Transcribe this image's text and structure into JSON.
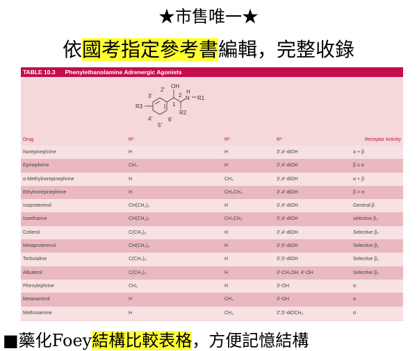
{
  "heading": {
    "line1": "★市售唯一★",
    "line2_pre": "依",
    "line2_hl": "國考指定參考書",
    "line2_post": "編輯，完整收錄"
  },
  "footer": {
    "pre": "■藥化Foey",
    "hl": "結構比較表格",
    "post": "，方便記憶結構"
  },
  "table": {
    "label": "TABLE 10.3",
    "title": "Phenylethanolamine Adrenergic Agonists",
    "structure_labels": {
      "oh": "OH",
      "h": "H",
      "n": "N",
      "r1": "R1",
      "r2": "R2",
      "r3": "R3",
      "p1": "1",
      "p2": "2",
      "p2p": "2'",
      "p3p": "3'",
      "p4p": "4'",
      "p5p": "5'",
      "p6p": "6'"
    },
    "columns": [
      "Drug",
      "R¹",
      "R²",
      "R³",
      "Receptor Activity"
    ],
    "rows": [
      [
        "Norepinephrine",
        "H",
        "H",
        "3',4'-diOH",
        "α + β"
      ],
      [
        "Epinephrine",
        "CH₃",
        "H",
        "3',4'-diOH",
        "β ≥ α"
      ],
      [
        "α-Methylnorepinephrine",
        "H",
        "CH₃",
        "3',4'-diOH",
        "α + β"
      ],
      [
        "Ethylnorepinephrine",
        "H",
        "CH₂CH₃",
        "3',4'-diOH",
        "β > α"
      ],
      [
        "Isoproterenol",
        "CH(CH₃)₂",
        "H",
        "3',4'-diOH",
        "General β"
      ],
      [
        "Isoetharine",
        "CH(CH₃)₂",
        "CH₂CH₃",
        "3',4'-diOH",
        "selective β₂"
      ],
      [
        "Colterol",
        "C(CH₃)₃",
        "H",
        "3',4'-diOH",
        "Selective β₂"
      ],
      [
        "Metaproterenol",
        "CH(CH₃)₂",
        "H",
        "3',5'-diOH",
        "Selective β₂"
      ],
      [
        "Terbutaline",
        "C(CH₃)₃",
        "H",
        "3',5'-diOH",
        "Selective β₂"
      ],
      [
        "Albuterol",
        "C(CH₃)₃",
        "H",
        "3'-CH₂OH, 4'-OH",
        "Selective β₂"
      ],
      [
        "Phenylephrine",
        "CH₃",
        "H",
        "3'-OH",
        "α"
      ],
      [
        "Metaraminol",
        "H",
        "CH₃",
        "3'-OH",
        "α"
      ],
      [
        "Methoxamine",
        "H",
        "CH₃",
        "2',5'-diOCH₃",
        "α"
      ]
    ]
  },
  "colors": {
    "accent": "#c30d4f",
    "highlight": "#ffff33"
  }
}
